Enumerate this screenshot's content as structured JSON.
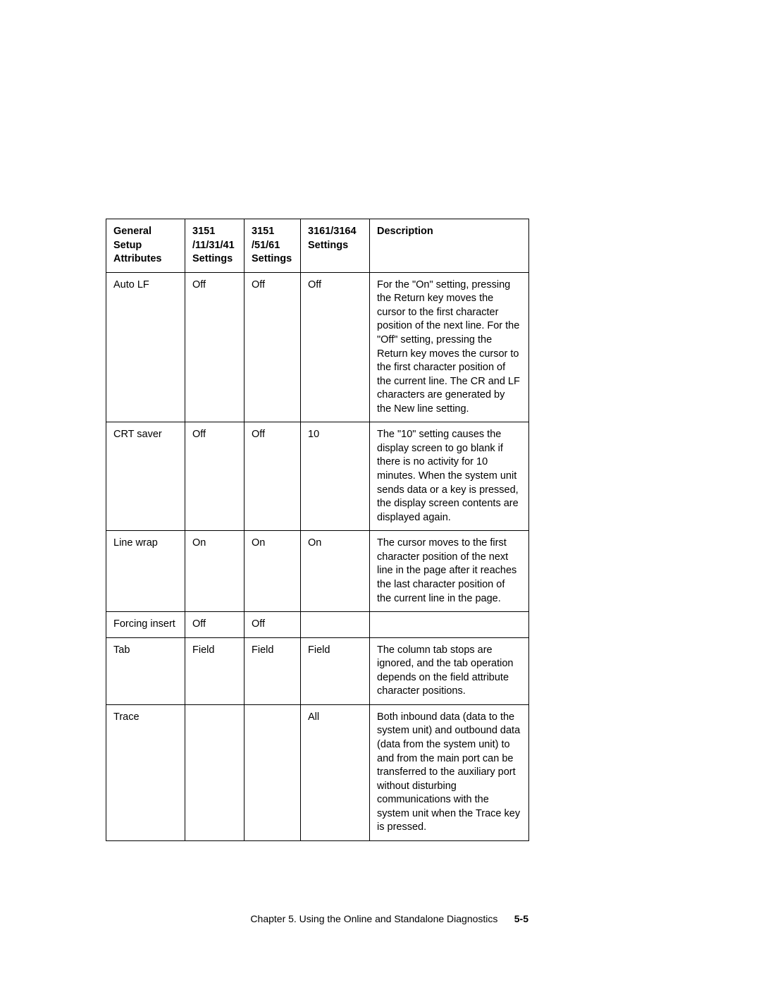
{
  "table": {
    "headers": {
      "col1": "General Setup Attributes",
      "col2": "3151 /11/31/41 Settings",
      "col3": "3151 /51/61 Settings",
      "col4": "3161/3164 Settings",
      "col5": "Description"
    },
    "rows": [
      {
        "attr": "Auto LF",
        "s1": "Off",
        "s2": "Off",
        "s3": "Off",
        "desc": "For the \"On\" setting, pressing the Return key moves the cursor to the first character position of the next line. For the \"Off\" setting, pressing the Return key moves the cursor to the first character position of the current line. The CR and LF characters are generated by the New line setting."
      },
      {
        "attr": "CRT saver",
        "s1": "Off",
        "s2": "Off",
        "s3": "10",
        "desc": "The \"10\" setting causes the display screen to go blank if there is no activity for 10 minutes. When the system unit sends data or a key is pressed, the display screen contents are displayed again."
      },
      {
        "attr": "Line wrap",
        "s1": "On",
        "s2": "On",
        "s3": "On",
        "desc": "The cursor moves to the first character position of the next line in the page after it reaches the last character position of the current line in the page."
      },
      {
        "attr": "Forcing insert",
        "s1": "Off",
        "s2": "Off",
        "s3": "",
        "desc": ""
      },
      {
        "attr": "Tab",
        "s1": "Field",
        "s2": "Field",
        "s3": "Field",
        "desc": "The column tab stops are ignored, and the tab operation depends on the field attribute character positions."
      },
      {
        "attr": "Trace",
        "s1": "",
        "s2": "",
        "s3": "All",
        "desc": "Both inbound data (data to the system unit) and outbound data (data from the system unit) to and from the main port can be transferred to the auxiliary port without disturbing communications with the system unit when the Trace key is pressed."
      }
    ]
  },
  "footer": {
    "chapter_text": "Chapter 5. Using the Online and Standalone Diagnostics",
    "page_number": "5-5"
  }
}
